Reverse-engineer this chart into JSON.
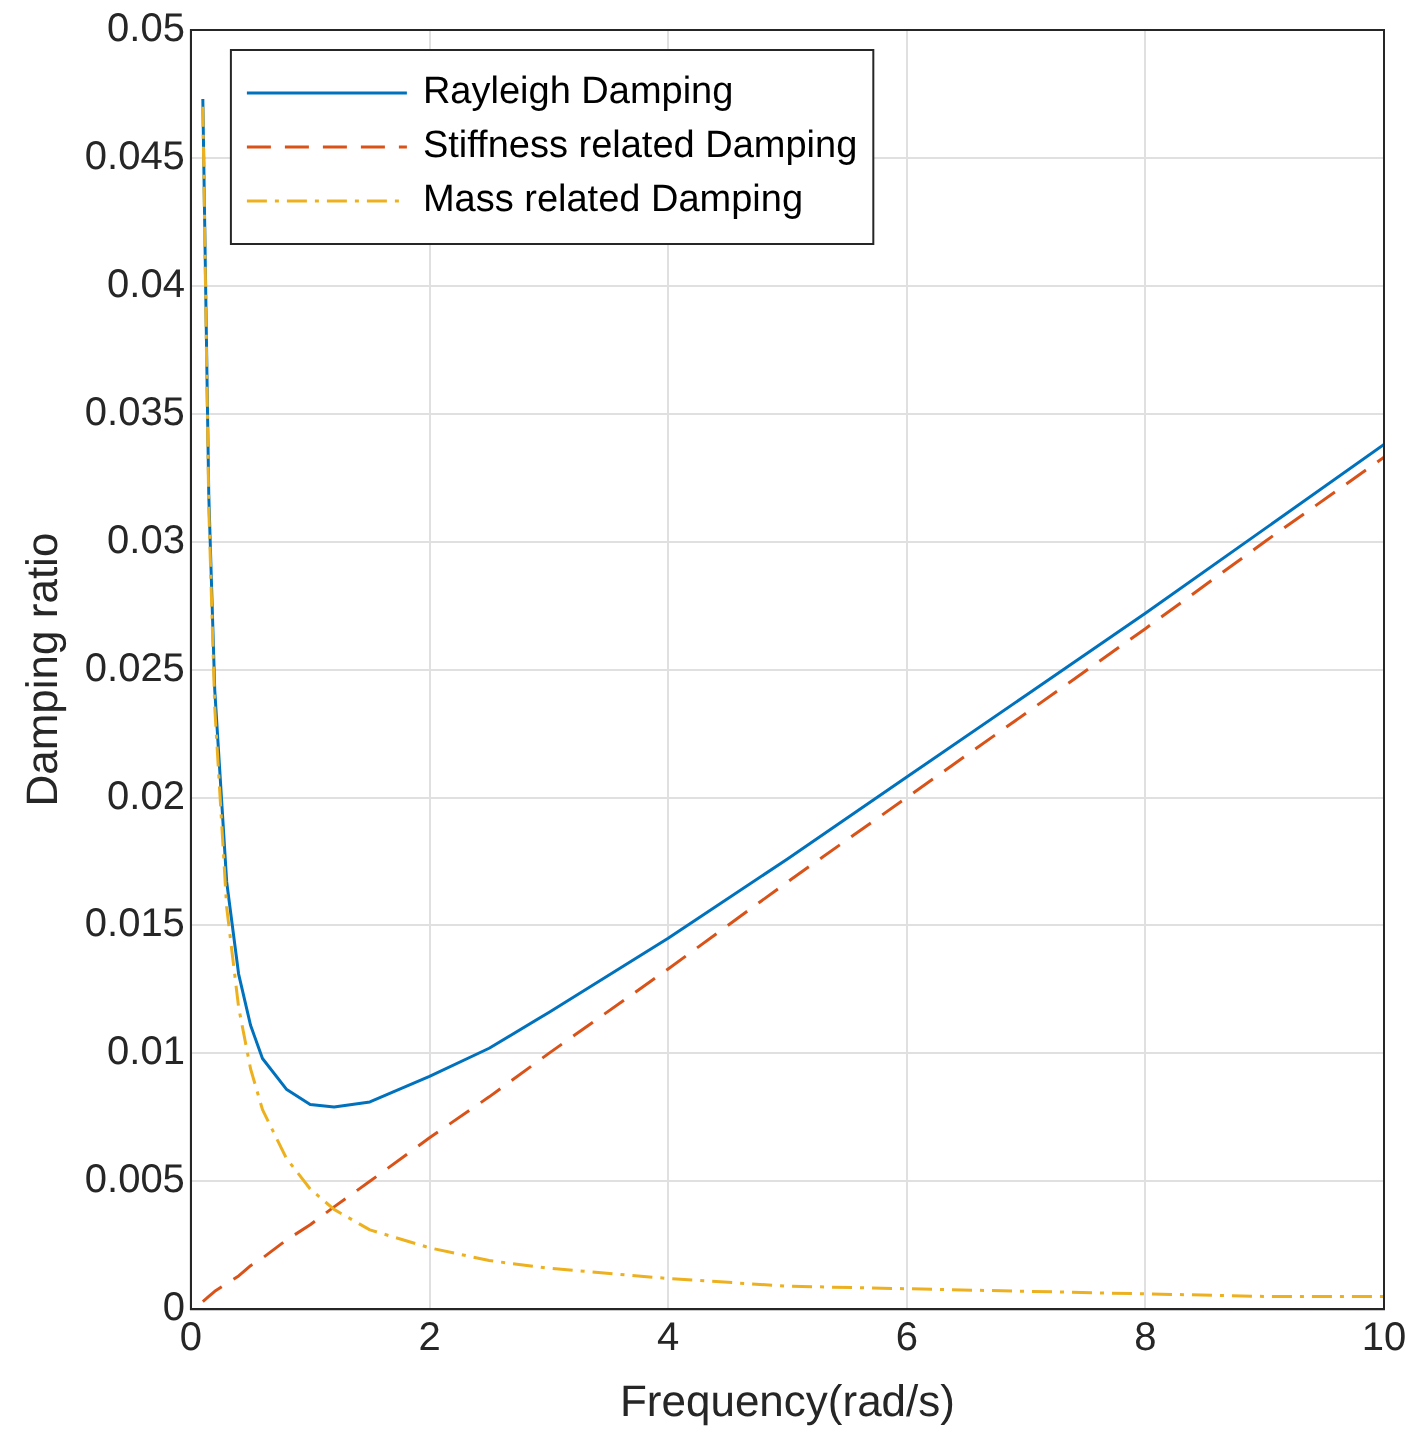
{
  "chart_data": {
    "type": "line",
    "xlabel": "Frequency(rad/s)",
    "ylabel": "Damping ratio",
    "x": [
      0.1,
      0.15,
      0.2,
      0.3,
      0.4,
      0.5,
      0.6,
      0.8,
      1,
      1.2,
      1.5,
      2,
      2.5,
      3,
      4,
      5,
      6,
      7,
      8,
      9,
      10
    ],
    "series": [
      {
        "name": "Rayleigh Damping",
        "color": "#0072bd",
        "line_style": "solid",
        "values": [
          0.0473,
          0.0318,
          0.0242,
          0.0167,
          0.0131,
          0.0111,
          0.0098,
          0.0086,
          0.008,
          0.0079,
          0.0081,
          0.0091,
          0.0102,
          0.0116,
          0.0145,
          0.0176,
          0.0208,
          0.024,
          0.0272,
          0.0305,
          0.0338
        ]
      },
      {
        "name": "Stiffness related Damping",
        "color": "#d95319",
        "line_style": "dashed",
        "values": [
          0.0003,
          0.0005,
          0.0007,
          0.001,
          0.0013,
          0.0017,
          0.002,
          0.0027,
          0.0033,
          0.004,
          0.005,
          0.0067,
          0.0083,
          0.01,
          0.0133,
          0.0167,
          0.02,
          0.0233,
          0.0266,
          0.03,
          0.0333
        ]
      },
      {
        "name": "Mass related Damping",
        "color": "#edb120",
        "line_style": "dashdot",
        "values": [
          0.047,
          0.0313,
          0.0235,
          0.0157,
          0.0118,
          0.0094,
          0.0078,
          0.0059,
          0.0047,
          0.0039,
          0.0031,
          0.0024,
          0.0019,
          0.0016,
          0.0012,
          0.0009,
          0.0008,
          0.0007,
          0.0006,
          0.0005,
          0.0005
        ]
      }
    ],
    "xlim": [
      0,
      10
    ],
    "xticks": [
      0,
      2,
      4,
      6,
      8,
      10
    ],
    "ylim": [
      0,
      0.05
    ],
    "yticks": [
      0,
      0.005,
      0.01,
      0.015,
      0.02,
      0.025,
      0.03,
      0.035,
      0.04,
      0.045,
      0.05
    ],
    "grid": true,
    "legend": "top left",
    "marker": "none"
  }
}
